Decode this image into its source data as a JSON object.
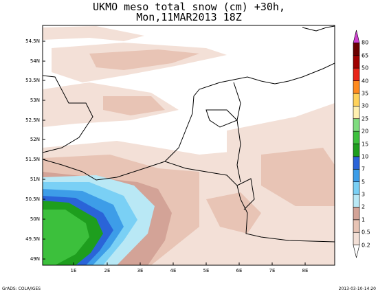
{
  "title": {
    "line1": "UKMO meso total snow (cm) +30h,",
    "line2": "Mon,11MAR2013 18Z"
  },
  "lat_labels": [
    "54.5N",
    "54N",
    "53.5N",
    "53N",
    "52.5N",
    "52N",
    "51.5N",
    "51N",
    "50.5N",
    "50N",
    "49.5N",
    "49N"
  ],
  "lon_labels": [
    "1E",
    "2E",
    "3E",
    "4E",
    "5E",
    "6E",
    "7E",
    "8E"
  ],
  "colorbar": {
    "levels": [
      "0.2",
      "0.5",
      "1",
      "2",
      "3",
      "5",
      "7",
      "10",
      "15",
      "20",
      "25",
      "30",
      "35",
      "40",
      "50",
      "65",
      "80"
    ],
    "colors": [
      "#ffffff",
      "#f3e0d7",
      "#e8c4b5",
      "#d3a397",
      "#b9e8f5",
      "#7ad0f5",
      "#3d9de8",
      "#2a64d8",
      "#1e9e1e",
      "#3cc03c",
      "#7fdc7f",
      "#fff0b0",
      "#ffd25a",
      "#ff8a1e",
      "#e82418",
      "#a00000",
      "#6a0000",
      "#d040d0"
    ]
  },
  "footer": {
    "left": "GrADS: COLA/IGES",
    "right": "2013-03-10-14:20"
  }
}
